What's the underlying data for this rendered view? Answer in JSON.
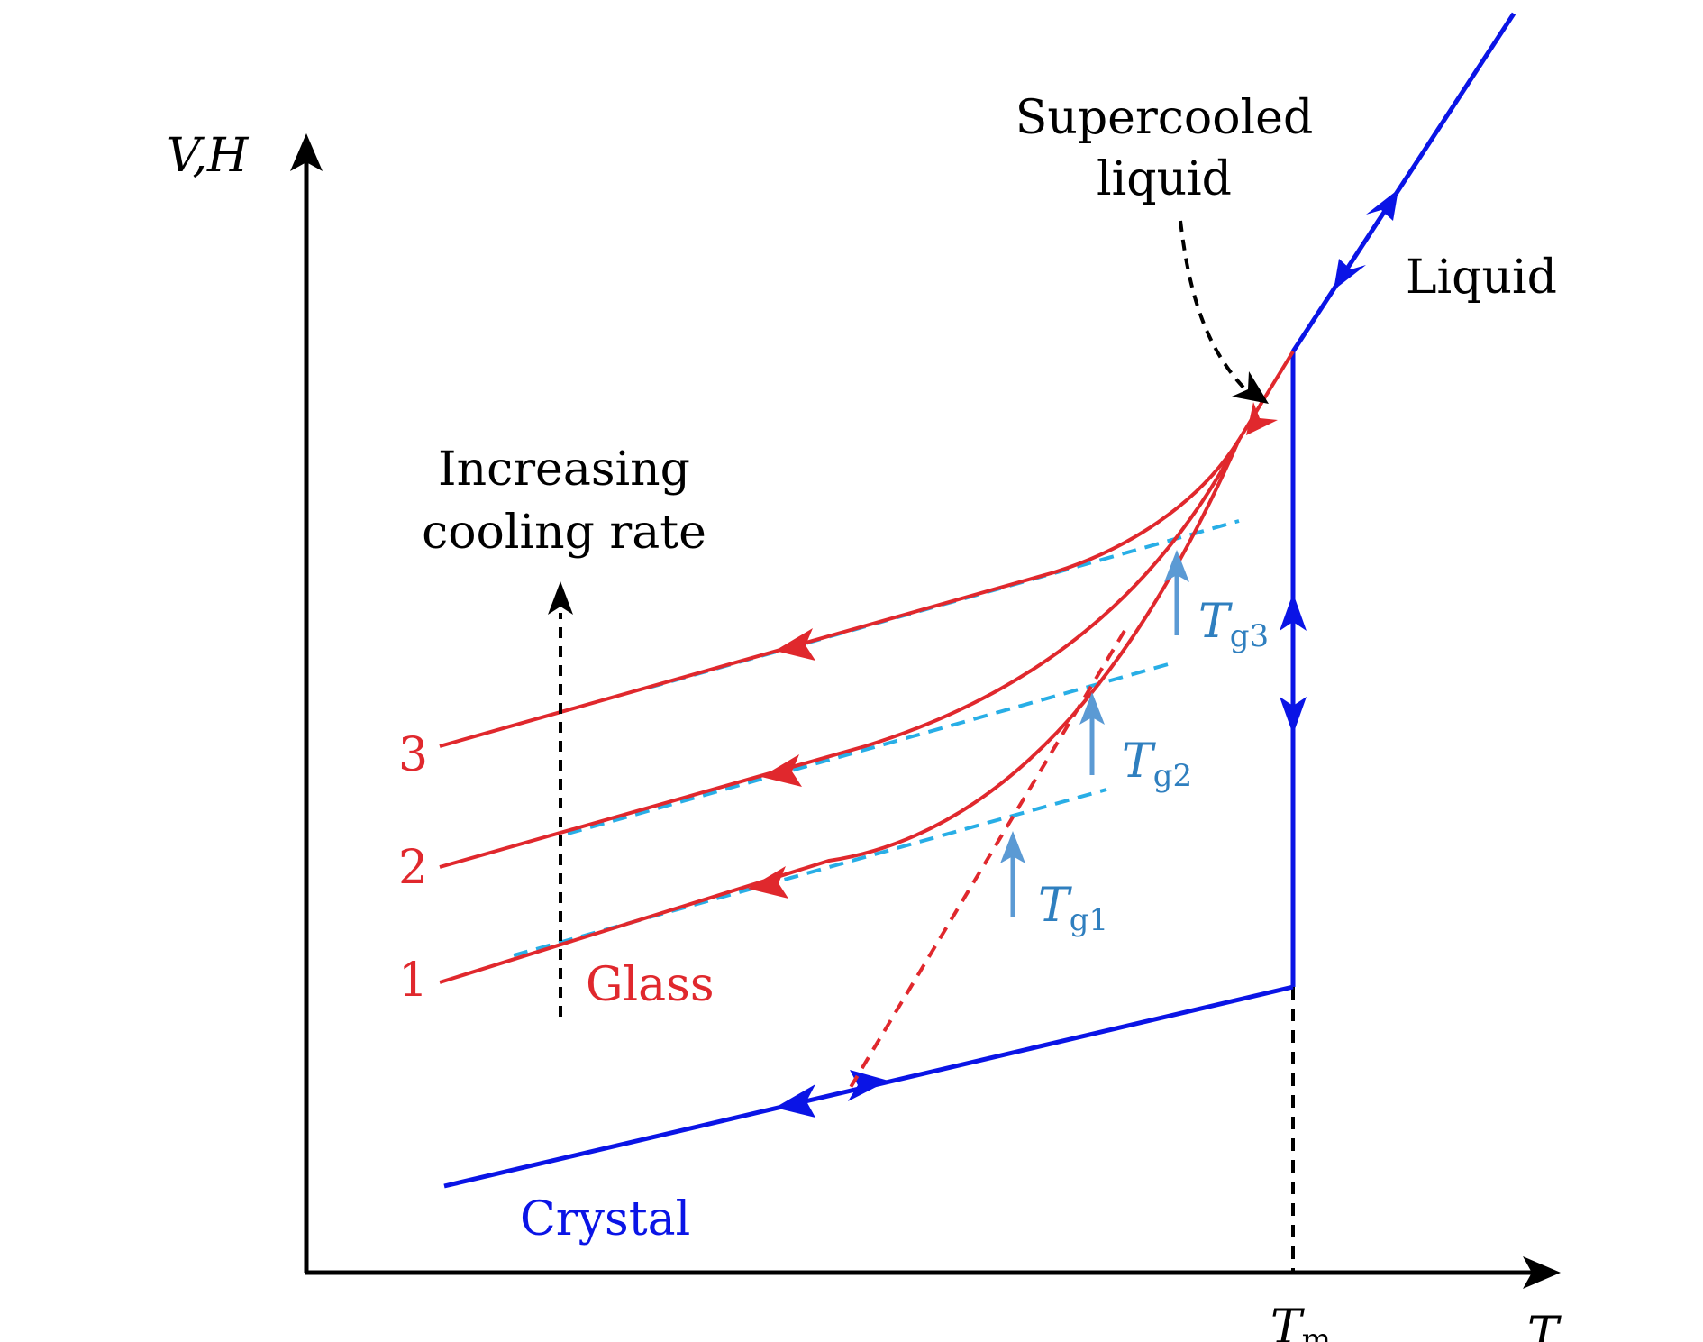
{
  "axes": {
    "y_label": "V,H",
    "x_label": "T"
  },
  "tm": {
    "main": "T",
    "sub": "m"
  },
  "labels": {
    "supercooled_line1": "Supercooled",
    "supercooled_line2": "liquid",
    "liquid": "Liquid",
    "increasing_line1": "Increasing",
    "increasing_line2": "cooling rate",
    "glass": "Glass",
    "crystal": "Crystal"
  },
  "curve_numbers": [
    "1",
    "2",
    "3"
  ],
  "tg": [
    {
      "main": "T",
      "sub": "g1"
    },
    {
      "main": "T",
      "sub": "g2"
    },
    {
      "main": "T",
      "sub": "g3"
    }
  ],
  "colors": {
    "axis": "#000000",
    "blue": "#0a14e6",
    "red": "#e0282d",
    "dash_blue": "#28aee6",
    "tg_text": "#2f7fbf",
    "tg_arrow": "#5b9ad4"
  }
}
